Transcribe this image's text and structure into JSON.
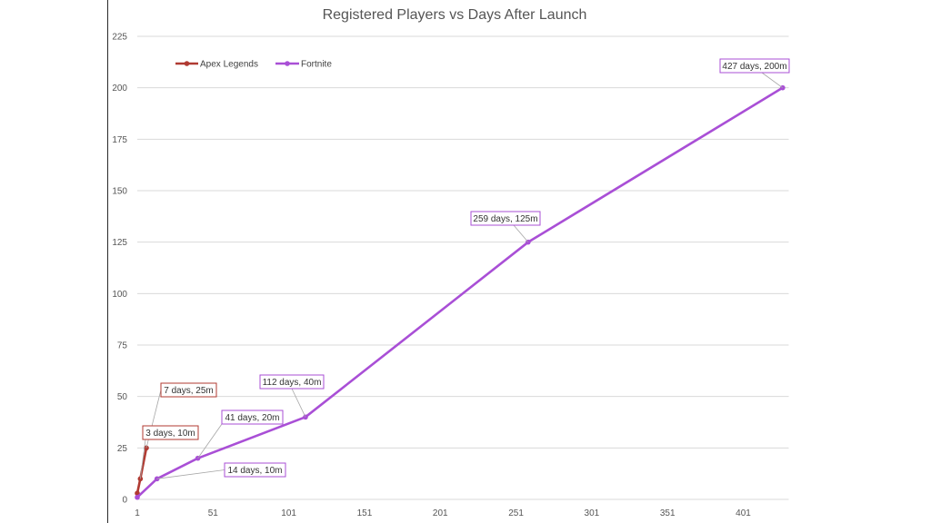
{
  "chart_data": {
    "type": "line",
    "title": "Registered Players vs Days After Launch",
    "xlabel": "",
    "ylabel": "",
    "x_ticks": [
      "1",
      "51",
      "101",
      "151",
      "201",
      "251",
      "301",
      "351",
      "401"
    ],
    "y_ticks": [
      "0",
      "25",
      "50",
      "75",
      "100",
      "125",
      "150",
      "175",
      "200",
      "225"
    ],
    "xlim": [
      1,
      431
    ],
    "ylim": [
      0,
      225
    ],
    "grid": "horizontal",
    "legend_position": "top-left",
    "series": [
      {
        "name": "Apex Legends",
        "color": "#b03a32",
        "points": [
          [
            1,
            3
          ],
          [
            3,
            10
          ],
          [
            7,
            25
          ]
        ]
      },
      {
        "name": "Fortnite",
        "color": "#a94fd6",
        "points": [
          [
            1,
            1
          ],
          [
            14,
            10
          ],
          [
            41,
            20
          ],
          [
            112,
            40
          ],
          [
            259,
            125
          ],
          [
            427,
            200
          ]
        ]
      }
    ],
    "annotations": [
      {
        "text": "7 days, 25m",
        "series": 0,
        "point": 2
      },
      {
        "text": "3 days, 10m",
        "series": 0,
        "point": 1
      },
      {
        "text": "14 days, 10m",
        "series": 1,
        "point": 1
      },
      {
        "text": "41 days, 20m",
        "series": 1,
        "point": 2
      },
      {
        "text": "112 days, 40m",
        "series": 1,
        "point": 3
      },
      {
        "text": "259 days, 125m",
        "series": 1,
        "point": 4
      },
      {
        "text": "427 days, 200m",
        "series": 1,
        "point": 5
      }
    ]
  }
}
